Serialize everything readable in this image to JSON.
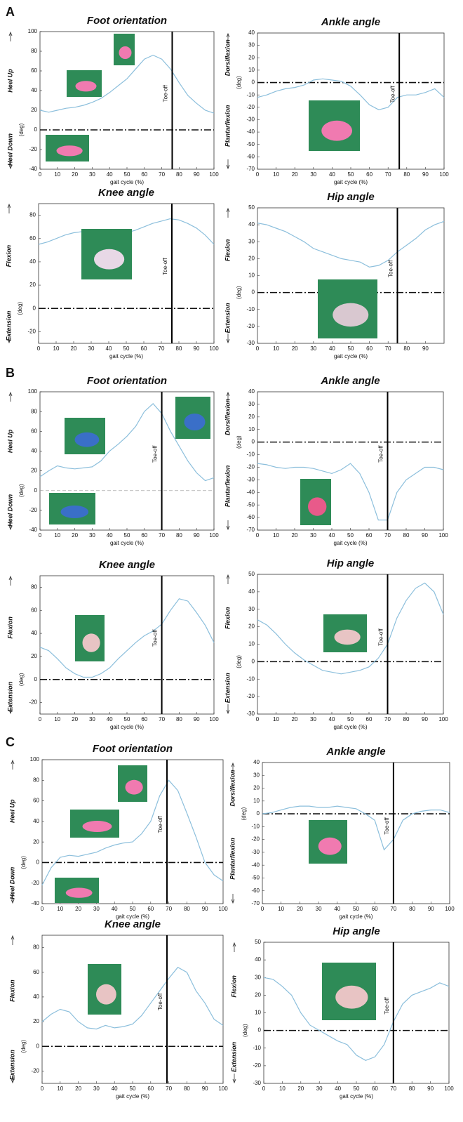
{
  "panel_labels": [
    "A",
    "B",
    "C"
  ],
  "chart_data": [
    {
      "type": "line",
      "title": "Foot orientation",
      "ylabel": "(deg)",
      "xlabel": "gait cycle (%)",
      "upper_label": "Heel Up",
      "lower_label": "Heel Down",
      "toe_off": 76,
      "toe_off_label": "Toe-off",
      "zero_line": "dash-dot",
      "x": [
        0,
        5,
        10,
        15,
        20,
        25,
        30,
        35,
        40,
        45,
        50,
        55,
        60,
        65,
        70,
        75,
        80,
        85,
        90,
        95,
        100
      ],
      "series": [
        {
          "color": "#8cbfdc",
          "values": [
            20,
            18,
            20,
            22,
            23,
            25,
            28,
            32,
            38,
            45,
            52,
            62,
            72,
            76,
            72,
            62,
            48,
            35,
            27,
            20,
            17
          ]
        }
      ],
      "xlim": [
        0,
        100
      ],
      "ylim": [
        -40,
        100
      ],
      "xticks": [
        0,
        10,
        20,
        30,
        40,
        50,
        60,
        70,
        80,
        90,
        100
      ],
      "yticks": [
        -40,
        -20,
        0,
        20,
        40,
        60,
        80,
        100
      ]
    },
    {
      "type": "line",
      "title": "Ankle angle",
      "ylabel": "(deg)",
      "xlabel": "gait cycle (%)",
      "upper_label": "Dorsiflexion",
      "lower_label": "Plantarflexion",
      "toe_off": 76,
      "toe_off_label": "Toe-off",
      "zero_line": "dash-dot",
      "x": [
        0,
        5,
        10,
        15,
        20,
        25,
        30,
        35,
        40,
        45,
        50,
        55,
        60,
        65,
        70,
        75,
        80,
        85,
        90,
        95,
        100
      ],
      "series": [
        {
          "color": "#8cbfdc",
          "values": [
            -12,
            -10,
            -7,
            -5,
            -4,
            -2,
            2,
            3,
            2,
            1,
            -3,
            -10,
            -18,
            -22,
            -20,
            -12,
            -10,
            -10,
            -8,
            -5,
            -12
          ]
        }
      ],
      "xlim": [
        0,
        100
      ],
      "ylim": [
        -70,
        40
      ],
      "xticks": [
        0,
        10,
        20,
        30,
        40,
        50,
        60,
        70,
        80,
        90,
        100
      ],
      "yticks": [
        -70,
        -60,
        -50,
        -40,
        -30,
        -20,
        -10,
        0,
        10,
        20,
        30,
        40
      ]
    },
    {
      "type": "line",
      "title": "Knee angle",
      "ylabel": "(deg)",
      "xlabel": "gait cycle (%)",
      "upper_label": "Flexion",
      "lower_label": "Extension",
      "toe_off": 76,
      "toe_off_label": "Toe-off",
      "zero_line": "dash-dot",
      "x": [
        0,
        5,
        10,
        15,
        20,
        25,
        30,
        35,
        40,
        45,
        50,
        55,
        60,
        65,
        70,
        75,
        80,
        85,
        90,
        95,
        100
      ],
      "series": [
        {
          "color": "#8cbfdc",
          "values": [
            55,
            57,
            60,
            63,
            65,
            66,
            66,
            65,
            64,
            64,
            65,
            67,
            70,
            73,
            75,
            77,
            76,
            73,
            69,
            63,
            55
          ]
        }
      ],
      "xlim": [
        0,
        100
      ],
      "ylim": [
        -30,
        90
      ],
      "xticks": [
        0,
        10,
        20,
        30,
        40,
        50,
        60,
        70,
        80,
        90,
        100
      ],
      "yticks": [
        -20,
        0,
        20,
        40,
        60,
        80
      ]
    },
    {
      "type": "line",
      "title": "Hip angle",
      "ylabel": "(deg)",
      "xlabel": "gait cycle (%)",
      "upper_label": "Flexion",
      "lower_label": "Extension",
      "toe_off": 75,
      "toe_off_label": "Toe-off",
      "zero_line": "dash-dot",
      "x": [
        0,
        5,
        10,
        15,
        20,
        25,
        30,
        35,
        40,
        45,
        50,
        55,
        60,
        65,
        70,
        75,
        80,
        85,
        90,
        95,
        100
      ],
      "series": [
        {
          "color": "#8cbfdc",
          "values": [
            41,
            40,
            38,
            36,
            33,
            30,
            26,
            24,
            22,
            20,
            19,
            18,
            15,
            16,
            19,
            24,
            28,
            32,
            37,
            40,
            42
          ]
        }
      ],
      "xlim": [
        0,
        100
      ],
      "ylim": [
        -30,
        50
      ],
      "xticks": [
        0,
        10,
        20,
        30,
        40,
        50,
        60,
        70,
        80,
        90
      ],
      "yticks": [
        -30,
        -20,
        -10,
        0,
        10,
        20,
        30,
        40,
        50
      ]
    },
    {
      "type": "line",
      "title": "Foot orientation",
      "ylabel": "(deg)",
      "xlabel": "gait cycle (%)",
      "upper_label": "Heel Up",
      "lower_label": "Heel Down",
      "toe_off": 70,
      "toe_off_label": "Toe-off",
      "zero_line": "dashed",
      "x": [
        0,
        5,
        10,
        15,
        20,
        25,
        30,
        35,
        40,
        45,
        50,
        55,
        60,
        65,
        70,
        75,
        80,
        85,
        90,
        95,
        100
      ],
      "series": [
        {
          "color": "#8cbfdc",
          "values": [
            14,
            20,
            25,
            23,
            22,
            23,
            24,
            30,
            40,
            47,
            55,
            65,
            80,
            88,
            78,
            60,
            45,
            30,
            18,
            10,
            13
          ]
        }
      ],
      "xlim": [
        0,
        100
      ],
      "ylim": [
        -40,
        100
      ],
      "xticks": [
        0,
        10,
        20,
        30,
        40,
        50,
        60,
        70,
        80,
        90,
        100
      ],
      "yticks": [
        -40,
        -20,
        0,
        20,
        40,
        60,
        80,
        100
      ]
    },
    {
      "type": "line",
      "title": "Ankle angle",
      "ylabel": "(deg)",
      "xlabel": "gait cycle (%)",
      "upper_label": "Dorsiflexion",
      "lower_label": "Plantarflexion",
      "toe_off": 70,
      "toe_off_label": "Toe-off",
      "zero_line": "dash-dot",
      "x": [
        0,
        5,
        10,
        15,
        20,
        25,
        30,
        35,
        40,
        45,
        50,
        55,
        60,
        65,
        70,
        75,
        80,
        85,
        90,
        95,
        100
      ],
      "series": [
        {
          "color": "#8cbfdc",
          "values": [
            -17,
            -18,
            -20,
            -21,
            -20,
            -20,
            -21,
            -23,
            -25,
            -22,
            -17,
            -25,
            -40,
            -62,
            -62,
            -40,
            -30,
            -25,
            -20,
            -20,
            -22
          ]
        }
      ],
      "xlim": [
        0,
        100
      ],
      "ylim": [
        -70,
        40
      ],
      "xticks": [
        0,
        10,
        20,
        30,
        40,
        50,
        60,
        70,
        80,
        90,
        100
      ],
      "yticks": [
        -70,
        -60,
        -50,
        -40,
        -30,
        -20,
        -10,
        0,
        10,
        20,
        30,
        40
      ]
    },
    {
      "type": "line",
      "title": "Knee angle",
      "ylabel": "(deg)",
      "xlabel": "gait cycle (%)",
      "upper_label": "Flexion",
      "lower_label": "Extension",
      "toe_off": 70,
      "toe_off_label": "Toe-off",
      "zero_line": "dash-dot",
      "x": [
        0,
        5,
        10,
        15,
        20,
        25,
        30,
        35,
        40,
        45,
        50,
        55,
        60,
        65,
        70,
        75,
        80,
        85,
        90,
        95,
        100
      ],
      "series": [
        {
          "color": "#8cbfdc",
          "values": [
            28,
            25,
            18,
            10,
            5,
            2,
            2,
            5,
            10,
            18,
            25,
            32,
            38,
            42,
            48,
            60,
            70,
            68,
            58,
            47,
            32
          ]
        }
      ],
      "xlim": [
        0,
        100
      ],
      "ylim": [
        -30,
        90
      ],
      "xticks": [
        0,
        10,
        20,
        30,
        40,
        50,
        60,
        70,
        80,
        90,
        100
      ],
      "yticks": [
        -20,
        0,
        20,
        40,
        60,
        80
      ]
    },
    {
      "type": "line",
      "title": "Hip angle",
      "ylabel": "(deg)",
      "xlabel": "gait cycle (%)",
      "upper_label": "Flexion",
      "lower_label": "Extension",
      "toe_off": 70,
      "toe_off_label": "Toe-off",
      "zero_line": "dash-dot",
      "x": [
        0,
        5,
        10,
        15,
        20,
        25,
        30,
        35,
        40,
        45,
        50,
        55,
        60,
        65,
        70,
        75,
        80,
        85,
        90,
        95,
        100
      ],
      "series": [
        {
          "color": "#8cbfdc",
          "values": [
            24,
            21,
            16,
            10,
            5,
            1,
            -2,
            -5,
            -6,
            -7,
            -6,
            -5,
            -3,
            2,
            10,
            25,
            35,
            42,
            45,
            40,
            27
          ]
        }
      ],
      "xlim": [
        0,
        100
      ],
      "ylim": [
        -30,
        50
      ],
      "xticks": [
        0,
        10,
        20,
        30,
        40,
        50,
        60,
        70,
        80,
        90,
        100
      ],
      "yticks": [
        -30,
        -20,
        -10,
        0,
        10,
        20,
        30,
        40,
        50
      ]
    },
    {
      "type": "line",
      "title": "Foot orientation",
      "ylabel": "(deg)",
      "xlabel": "gait cycle (%)",
      "upper_label": "Heel Up",
      "lower_label": "Heel Down",
      "toe_off": 69,
      "toe_off_label": "Toe-off",
      "zero_line": "dash-dot",
      "x": [
        0,
        5,
        10,
        15,
        20,
        25,
        30,
        35,
        40,
        45,
        50,
        55,
        60,
        65,
        70,
        75,
        80,
        85,
        90,
        95,
        100
      ],
      "series": [
        {
          "color": "#8cbfdc",
          "values": [
            -22,
            -5,
            5,
            7,
            6,
            8,
            10,
            14,
            17,
            19,
            20,
            28,
            40,
            65,
            80,
            70,
            48,
            25,
            0,
            -12,
            -18
          ]
        }
      ],
      "xlim": [
        0,
        100
      ],
      "ylim": [
        -40,
        100
      ],
      "xticks": [
        0,
        10,
        20,
        30,
        40,
        50,
        60,
        70,
        80,
        90,
        100
      ],
      "yticks": [
        -40,
        -20,
        0,
        20,
        40,
        60,
        80,
        100
      ]
    },
    {
      "type": "line",
      "title": "Ankle angle",
      "ylabel": "(deg)",
      "xlabel": "gait cycle (%)",
      "upper_label": "Dorsiflexion",
      "lower_label": "Plantarflexion",
      "toe_off": 70,
      "toe_off_label": "Toe-off",
      "zero_line": "dash-dot",
      "x": [
        0,
        5,
        10,
        15,
        20,
        25,
        30,
        35,
        40,
        45,
        50,
        55,
        60,
        65,
        70,
        75,
        80,
        85,
        90,
        95,
        100
      ],
      "series": [
        {
          "color": "#8cbfdc",
          "values": [
            0,
            1,
            3,
            5,
            6,
            6,
            5,
            5,
            6,
            5,
            4,
            0,
            -5,
            -28,
            -20,
            -5,
            0,
            2,
            3,
            3,
            1
          ]
        }
      ],
      "xlim": [
        0,
        100
      ],
      "ylim": [
        -70,
        40
      ],
      "xticks": [
        0,
        10,
        20,
        30,
        40,
        50,
        60,
        70,
        80,
        90,
        100
      ],
      "yticks": [
        -70,
        -60,
        -50,
        -40,
        -30,
        -20,
        -10,
        0,
        10,
        20,
        30,
        40
      ]
    },
    {
      "type": "line",
      "title": "Knee angle",
      "ylabel": "(deg)",
      "xlabel": "gait cycle (%)",
      "upper_label": "Flexion",
      "lower_label": "Extension",
      "toe_off": 69,
      "toe_off_label": "Toe-off",
      "zero_line": "dash-dot",
      "x": [
        0,
        5,
        10,
        15,
        20,
        25,
        30,
        35,
        40,
        45,
        50,
        55,
        60,
        65,
        70,
        75,
        80,
        85,
        90,
        95,
        100
      ],
      "series": [
        {
          "color": "#8cbfdc",
          "values": [
            20,
            26,
            30,
            28,
            20,
            15,
            14,
            17,
            15,
            16,
            18,
            25,
            35,
            45,
            55,
            64,
            60,
            45,
            35,
            22,
            17
          ]
        }
      ],
      "xlim": [
        0,
        100
      ],
      "ylim": [
        -30,
        90
      ],
      "xticks": [
        0,
        10,
        20,
        30,
        40,
        50,
        60,
        70,
        80,
        90,
        100
      ],
      "yticks": [
        -20,
        0,
        20,
        40,
        60,
        80
      ]
    },
    {
      "type": "line",
      "title": "Hip angle",
      "ylabel": "(deg)",
      "xlabel": "gait cycle (%)",
      "upper_label": "Flexion",
      "lower_label": "Extension",
      "toe_off": 70,
      "toe_off_label": "Toe-off",
      "zero_line": "dash-dot",
      "x": [
        0,
        5,
        10,
        15,
        20,
        25,
        30,
        35,
        40,
        45,
        50,
        55,
        60,
        65,
        70,
        75,
        80,
        85,
        90,
        95,
        100
      ],
      "series": [
        {
          "color": "#8cbfdc",
          "values": [
            30,
            29,
            25,
            20,
            10,
            3,
            0,
            -3,
            -6,
            -8,
            -14,
            -17,
            -15,
            -8,
            5,
            15,
            20,
            22,
            24,
            27,
            25
          ]
        }
      ],
      "xlim": [
        0,
        100
      ],
      "ylim": [
        -30,
        50
      ],
      "xticks": [
        0,
        10,
        20,
        30,
        40,
        50,
        60,
        70,
        80,
        90,
        100
      ],
      "yticks": [
        -30,
        -20,
        -10,
        0,
        10,
        20,
        30,
        40,
        50
      ]
    }
  ]
}
